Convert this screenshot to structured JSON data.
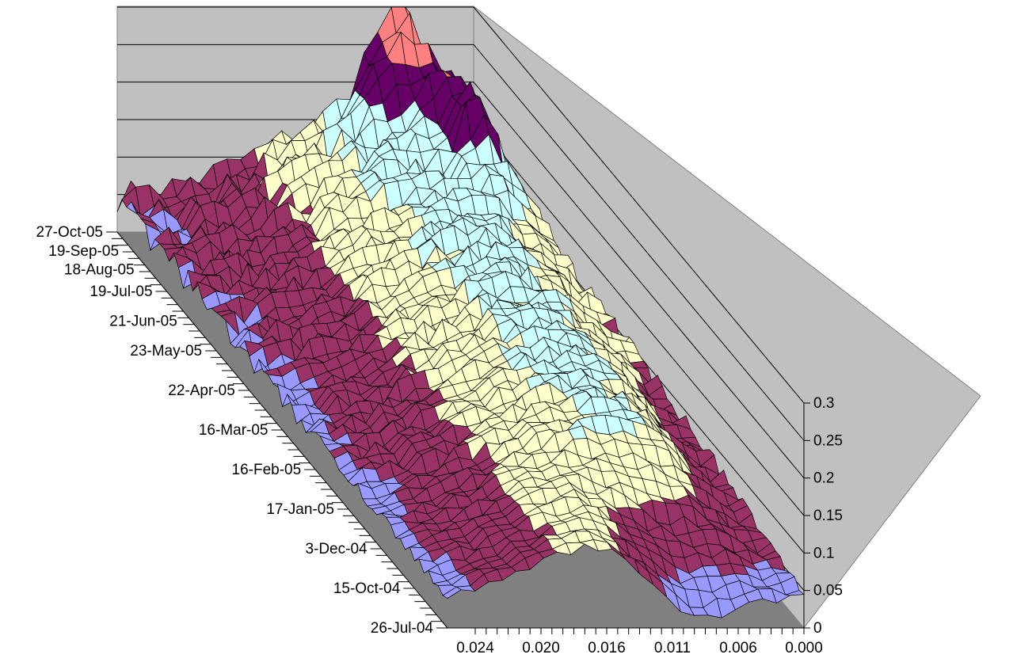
{
  "chart_data": {
    "type": "surface",
    "title": "",
    "z_axis": {
      "range": [
        0,
        0.3
      ],
      "ticks": [
        "0",
        "0.05",
        "0.1",
        "0.15",
        "0.2",
        "0.25",
        "0.3"
      ]
    },
    "x_axis": {
      "ticks": [
        "0.024",
        "0.020",
        "0.016",
        "0.011",
        "0.006",
        "0.000"
      ]
    },
    "date_axis": {
      "ticks": [
        "26-Jul-04",
        "15-Oct-04",
        "3-Dec-04",
        "17-Jan-05",
        "16-Feb-05",
        "16-Mar-05",
        "22-Apr-05",
        "23-May-05",
        "21-Jun-05",
        "19-Jul-05",
        "18-Aug-05",
        "19-Sep-05",
        "27-Oct-05"
      ]
    },
    "bands": [
      {
        "range": [
          0,
          0.05
        ],
        "color": "#9999ff"
      },
      {
        "range": [
          0.05,
          0.1
        ],
        "color": "#993366"
      },
      {
        "range": [
          0.1,
          0.15
        ],
        "color": "#ffffcc"
      },
      {
        "range": [
          0.15,
          0.2
        ],
        "color": "#ccffff"
      },
      {
        "range": [
          0.2,
          0.25
        ],
        "color": "#660066"
      },
      {
        "range": [
          0.25,
          0.3
        ],
        "color": "#ff8080"
      }
    ],
    "walls": {
      "back": "#c0c0c0",
      "floor": "#808080"
    },
    "grid": true
  }
}
